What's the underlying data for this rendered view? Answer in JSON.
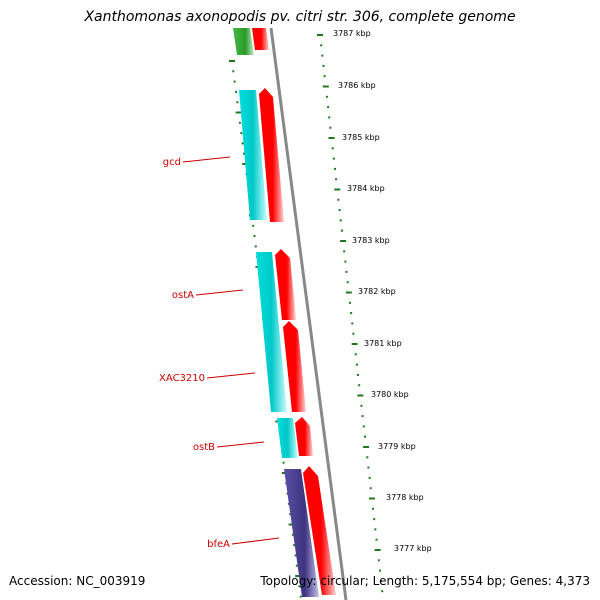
{
  "title": "Xanthomonas axonopodis pv. citri str. 306, complete genome",
  "footer": {
    "accession": "Accession: NC_003919",
    "topology": "Topology: circular; Length: 5,175,554 bp; Genes: 4,373"
  },
  "colors": {
    "forward_cds": "#ff0000",
    "reverse_cds": "#00cccc",
    "green_feature": "#2eaa2e",
    "purple_feature": "#4a3f8f",
    "backbone": "#888888",
    "gene_label": "#cc0000",
    "tick": "#1f7a1f"
  },
  "ruler": {
    "labels": [
      "3787 kbp",
      "3786 kbp",
      "3785 kbp",
      "3784 kbp",
      "3783 kbp",
      "3782 kbp",
      "3781 kbp",
      "3780 kbp",
      "3779 kbp",
      "3778 kbp",
      "3777 kbp"
    ]
  },
  "genes": [
    {
      "label": "gcd",
      "strand": "reverse"
    },
    {
      "label": "ostA",
      "strand": "reverse"
    },
    {
      "label": "XAC3210",
      "strand": "reverse"
    },
    {
      "label": "ostB",
      "strand": "reverse"
    },
    {
      "label": "bfeA",
      "strand": "reverse"
    }
  ]
}
